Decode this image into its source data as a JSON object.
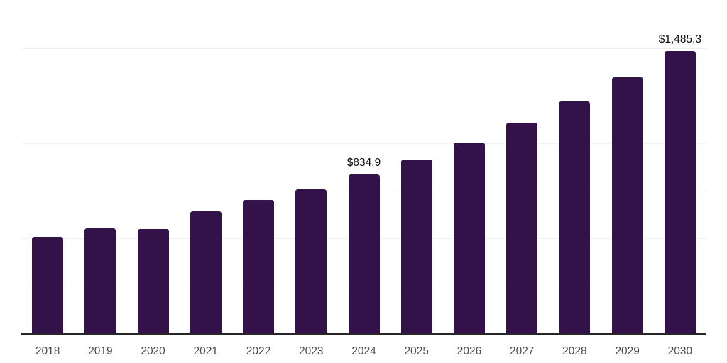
{
  "chart_data": {
    "type": "bar",
    "categories": [
      "2018",
      "2019",
      "2020",
      "2021",
      "2022",
      "2023",
      "2024",
      "2025",
      "2026",
      "2027",
      "2028",
      "2029",
      "2030"
    ],
    "values": [
      507.4,
      554.0,
      548.4,
      640.6,
      700.3,
      756.3,
      834.9,
      914.1,
      1004.8,
      1107.0,
      1221.2,
      1345.8,
      1485.3
    ],
    "point_labels": [
      "",
      "",
      "",
      "",
      "",
      "",
      "$834.9",
      "",
      "",
      "",
      "",
      "",
      "$1,485.3"
    ],
    "xlabel": "",
    "ylabel": "",
    "ylim": [
      0,
      1750
    ],
    "gridline_step": 250,
    "grid": true,
    "legend_position": "none",
    "y_axis_tick_labels_visible": false,
    "colors": {
      "bar": "#33124a",
      "axis_line": "#262626",
      "gridline": "#f2f2f2",
      "tick_label": "#4b4b4b",
      "value_label": "#0d0d0d",
      "background": "#ffffff"
    }
  }
}
